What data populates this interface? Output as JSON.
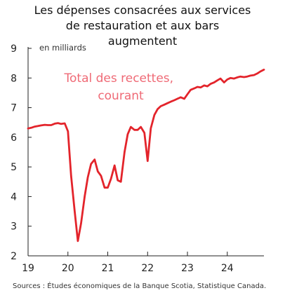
{
  "chart_data": {
    "type": "line",
    "title_lines": [
      "Les dépenses consacrées aux services",
      "de restauration et aux bars",
      "augmentent"
    ],
    "unit_label": "en milliards",
    "series_label_lines": [
      "Total des recettes,",
      "courant"
    ],
    "source": "Sources : Études économiques de la Banque Scotia, Statistique Canada.",
    "ylim": [
      2,
      9
    ],
    "yticks": [
      "2",
      "3",
      "4",
      "5",
      "6",
      "7",
      "8",
      "9"
    ],
    "xlim": [
      2019.0,
      2024.92
    ],
    "xticks": [
      {
        "value": 2019,
        "label": "19"
      },
      {
        "value": 2020,
        "label": "20"
      },
      {
        "value": 2021,
        "label": "21"
      },
      {
        "value": 2022,
        "label": "22"
      },
      {
        "value": 2023,
        "label": "23"
      },
      {
        "value": 2024,
        "label": "24"
      }
    ],
    "grid": false,
    "series": [
      {
        "color": "#e3242b",
        "points": [
          [
            2019.0,
            6.3
          ],
          [
            2019.08,
            6.32
          ],
          [
            2019.17,
            6.36
          ],
          [
            2019.25,
            6.38
          ],
          [
            2019.33,
            6.4
          ],
          [
            2019.42,
            6.42
          ],
          [
            2019.5,
            6.41
          ],
          [
            2019.58,
            6.41
          ],
          [
            2019.67,
            6.46
          ],
          [
            2019.75,
            6.48
          ],
          [
            2019.83,
            6.45
          ],
          [
            2019.92,
            6.47
          ],
          [
            2020.0,
            6.2
          ],
          [
            2020.08,
            4.7
          ],
          [
            2020.17,
            3.5
          ],
          [
            2020.25,
            2.5
          ],
          [
            2020.33,
            3.1
          ],
          [
            2020.42,
            4.0
          ],
          [
            2020.5,
            4.65
          ],
          [
            2020.58,
            5.1
          ],
          [
            2020.67,
            5.25
          ],
          [
            2020.75,
            4.85
          ],
          [
            2020.83,
            4.7
          ],
          [
            2020.92,
            4.3
          ],
          [
            2021.0,
            4.3
          ],
          [
            2021.08,
            4.6
          ],
          [
            2021.17,
            5.05
          ],
          [
            2021.25,
            4.55
          ],
          [
            2021.33,
            4.5
          ],
          [
            2021.42,
            5.5
          ],
          [
            2021.5,
            6.1
          ],
          [
            2021.58,
            6.35
          ],
          [
            2021.67,
            6.25
          ],
          [
            2021.75,
            6.25
          ],
          [
            2021.83,
            6.35
          ],
          [
            2021.92,
            6.15
          ],
          [
            2022.0,
            5.2
          ],
          [
            2022.08,
            6.3
          ],
          [
            2022.17,
            6.75
          ],
          [
            2022.25,
            6.95
          ],
          [
            2022.33,
            7.05
          ],
          [
            2022.42,
            7.1
          ],
          [
            2022.5,
            7.15
          ],
          [
            2022.58,
            7.2
          ],
          [
            2022.67,
            7.25
          ],
          [
            2022.75,
            7.3
          ],
          [
            2022.83,
            7.35
          ],
          [
            2022.92,
            7.3
          ],
          [
            2023.0,
            7.45
          ],
          [
            2023.08,
            7.6
          ],
          [
            2023.17,
            7.65
          ],
          [
            2023.25,
            7.7
          ],
          [
            2023.33,
            7.68
          ],
          [
            2023.42,
            7.75
          ],
          [
            2023.5,
            7.72
          ],
          [
            2023.58,
            7.8
          ],
          [
            2023.67,
            7.85
          ],
          [
            2023.75,
            7.92
          ],
          [
            2023.83,
            7.98
          ],
          [
            2023.92,
            7.85
          ],
          [
            2024.0,
            7.95
          ],
          [
            2024.08,
            8.0
          ],
          [
            2024.17,
            7.98
          ],
          [
            2024.25,
            8.02
          ],
          [
            2024.33,
            8.05
          ],
          [
            2024.42,
            8.03
          ],
          [
            2024.5,
            8.05
          ],
          [
            2024.58,
            8.08
          ],
          [
            2024.67,
            8.1
          ],
          [
            2024.75,
            8.15
          ],
          [
            2024.83,
            8.22
          ],
          [
            2024.92,
            8.28
          ]
        ]
      }
    ]
  }
}
